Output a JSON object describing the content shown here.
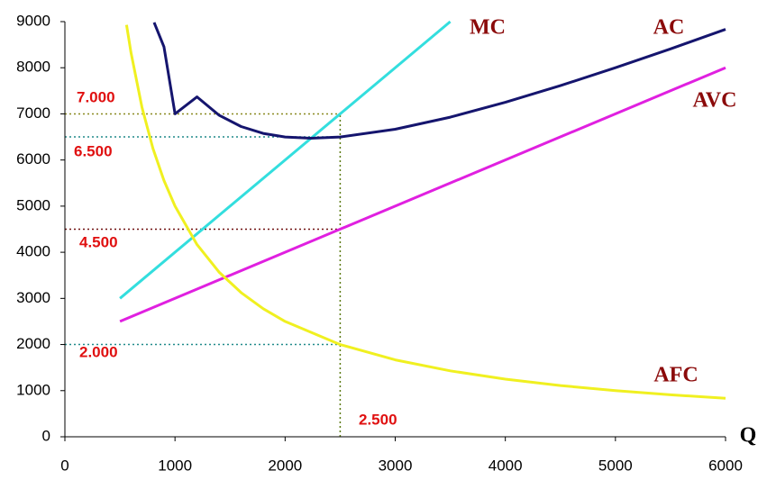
{
  "chart_data": {
    "type": "line",
    "x_label": "Q",
    "xlim": [
      0,
      6000
    ],
    "xticks": [
      0,
      1000,
      2000,
      3000,
      4000,
      5000,
      6000
    ],
    "ylim": [
      0,
      9000
    ],
    "yticks": [
      0,
      1000,
      2000,
      3000,
      4000,
      5000,
      6000,
      7000,
      8000,
      9000
    ],
    "grid": false,
    "series": [
      {
        "name": "MC",
        "color": "#33dede",
        "x": [
          500,
          3500
        ],
        "values": [
          3000,
          9000
        ]
      },
      {
        "name": "AC",
        "color": "#15156e",
        "x": [
          810,
          900,
          1000,
          1200,
          1400,
          1600,
          1800,
          2000,
          2236,
          2500,
          3000,
          3500,
          4000,
          4500,
          5000,
          5500,
          6000
        ],
        "values": [
          8983,
          8456,
          7000,
          7367,
          6971,
          6725,
          6578,
          6500,
          6472,
          6500,
          6667,
          6929,
          7250,
          7611,
          8000,
          8409,
          8833
        ]
      },
      {
        "name": "AVC",
        "color": "#e020e0",
        "x": [
          500,
          6000
        ],
        "values": [
          2500,
          8000
        ]
      },
      {
        "name": "AFC",
        "color": "#f0f020",
        "x": [
          560,
          600,
          700,
          800,
          900,
          1000,
          1200,
          1400,
          1600,
          1800,
          2000,
          2500,
          3000,
          3500,
          4000,
          4500,
          5000,
          5500,
          6000
        ],
        "values": [
          8929,
          8333,
          7143,
          6250,
          5556,
          5000,
          4167,
          3571,
          3125,
          2778,
          2500,
          2000,
          1667,
          1429,
          1250,
          1111,
          1000,
          909,
          833
        ]
      }
    ],
    "guides": [
      {
        "label": "7.000",
        "axis": "y",
        "value": 7000,
        "to": 2500,
        "color": "#8a8a20"
      },
      {
        "label": "6.500",
        "axis": "y",
        "value": 6500,
        "to": 2500,
        "color": "#208a8a"
      },
      {
        "label": "4.500",
        "axis": "y",
        "value": 4500,
        "to": 2500,
        "color": "#701010"
      },
      {
        "label": "2.000",
        "axis": "y",
        "value": 2000,
        "to": 2500,
        "color": "#208a8a"
      },
      {
        "label": "2.500",
        "axis": "x",
        "value": 2500,
        "to": 7000,
        "color": "#5a7a10"
      }
    ]
  }
}
